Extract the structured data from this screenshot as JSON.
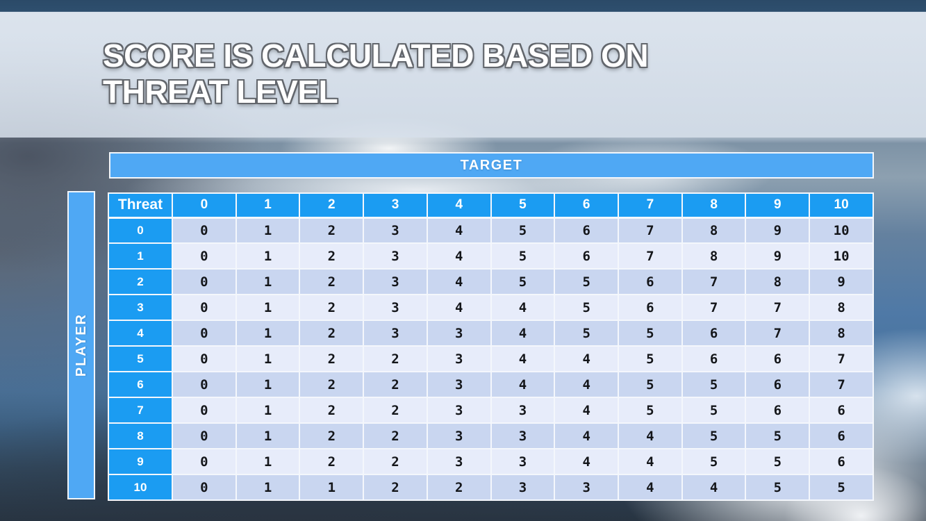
{
  "slide": {
    "title": {
      "line1": "SCORE IS CALCULATED BASED ON",
      "line2": "THREAT LEVEL"
    }
  },
  "matrix": {
    "target_label": "TARGET",
    "player_label": "PLAYER",
    "corner_label": "Threat",
    "column_headers": [
      "0",
      "1",
      "2",
      "3",
      "4",
      "5",
      "6",
      "7",
      "8",
      "9",
      "10"
    ],
    "rows": [
      {
        "threat": "0",
        "scores": [
          0,
          1,
          2,
          3,
          4,
          5,
          6,
          7,
          8,
          9,
          10
        ]
      },
      {
        "threat": "1",
        "scores": [
          0,
          1,
          2,
          3,
          4,
          5,
          6,
          7,
          8,
          9,
          10
        ]
      },
      {
        "threat": "2",
        "scores": [
          0,
          1,
          2,
          3,
          4,
          5,
          5,
          6,
          7,
          8,
          9
        ]
      },
      {
        "threat": "3",
        "scores": [
          0,
          1,
          2,
          3,
          4,
          4,
          5,
          6,
          7,
          7,
          8
        ]
      },
      {
        "threat": "4",
        "scores": [
          0,
          1,
          2,
          3,
          3,
          4,
          5,
          5,
          6,
          7,
          8
        ]
      },
      {
        "threat": "5",
        "scores": [
          0,
          1,
          2,
          2,
          3,
          4,
          4,
          5,
          6,
          6,
          7
        ]
      },
      {
        "threat": "6",
        "scores": [
          0,
          1,
          2,
          2,
          3,
          4,
          4,
          5,
          5,
          6,
          7
        ]
      },
      {
        "threat": "7",
        "scores": [
          0,
          1,
          2,
          2,
          3,
          3,
          4,
          5,
          5,
          6,
          6
        ]
      },
      {
        "threat": "8",
        "scores": [
          0,
          1,
          2,
          2,
          3,
          3,
          4,
          4,
          5,
          5,
          6
        ]
      },
      {
        "threat": "9",
        "scores": [
          0,
          1,
          2,
          2,
          3,
          3,
          4,
          4,
          5,
          5,
          6
        ]
      },
      {
        "threat": "10",
        "scores": [
          0,
          1,
          1,
          2,
          2,
          3,
          3,
          4,
          4,
          5,
          5
        ]
      }
    ]
  },
  "colors": {
    "header_blue": "#1b9cf2",
    "band_blue": "#4fa8f4",
    "row_shade_dark": "#c9d6f0",
    "row_shade_light": "#e7ecfa",
    "title_color": "#ffffff"
  }
}
